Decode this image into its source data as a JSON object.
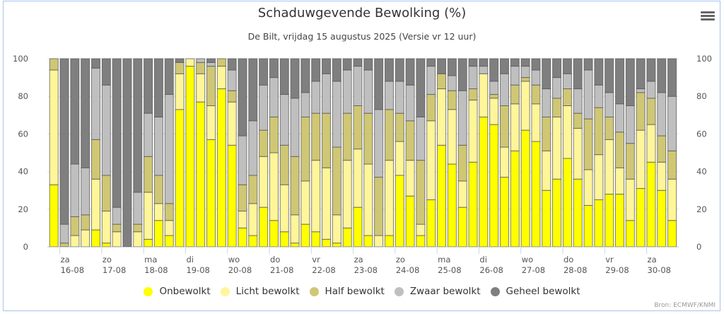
{
  "header": {
    "title": "Schaduwgevende Bewolking (%)",
    "subtitle": "De Bilt, vrijdag 15 augustus 2025 (Versie vr 12 uur)",
    "menu_icon": "hamburger-menu-icon"
  },
  "credits": "Bron: ECMWF/KNMI",
  "chart_data": {
    "type": "bar",
    "stacked": true,
    "title": "Schaduwgevende Bewolking (%)",
    "subtitle": "De Bilt, vrijdag 15 augustus 2025 (Versie vr 12 uur)",
    "xlabel": "",
    "ylabel": "",
    "ylim": [
      0,
      100
    ],
    "yticks": [
      0,
      20,
      40,
      60,
      80,
      100
    ],
    "y_axis_both_sides": true,
    "grid": true,
    "legend_position": "bottom",
    "interval": "6 uur",
    "day_ticks": [
      {
        "day": "za",
        "date": "16-08",
        "at_index": 1
      },
      {
        "day": "zo",
        "date": "17-08",
        "at_index": 5
      },
      {
        "day": "ma",
        "date": "18-08",
        "at_index": 9
      },
      {
        "day": "di",
        "date": "19-08",
        "at_index": 13
      },
      {
        "day": "wo",
        "date": "20-08",
        "at_index": 17
      },
      {
        "day": "do",
        "date": "21-08",
        "at_index": 21
      },
      {
        "day": "vr",
        "date": "22-08",
        "at_index": 25
      },
      {
        "day": "za",
        "date": "23-08",
        "at_index": 29
      },
      {
        "day": "zo",
        "date": "24-08",
        "at_index": 33
      },
      {
        "day": "ma",
        "date": "25-08",
        "at_index": 37
      },
      {
        "day": "di",
        "date": "26-08",
        "at_index": 41
      },
      {
        "day": "wo",
        "date": "27-08",
        "at_index": 45
      },
      {
        "day": "do",
        "date": "28-08",
        "at_index": 49
      },
      {
        "day": "vr",
        "date": "29-08",
        "at_index": 53
      },
      {
        "day": "za",
        "date": "30-08",
        "at_index": 57
      }
    ],
    "series": [
      {
        "name": "Onbewolkt",
        "color": "#ffff00",
        "values": [
          33,
          0,
          0,
          0,
          9,
          2,
          0,
          0,
          0,
          4,
          14,
          6,
          73,
          96,
          77,
          57,
          84,
          54,
          10,
          6,
          21,
          14,
          8,
          2,
          12,
          8,
          4,
          2,
          10,
          21,
          6,
          0,
          6,
          38,
          27,
          6,
          25,
          54,
          44,
          21,
          45,
          69,
          65,
          37,
          51,
          62,
          56,
          30,
          36,
          47,
          36,
          22,
          25,
          28,
          28,
          14,
          31,
          45,
          30,
          14
        ]
      },
      {
        "name": "Licht bewolkt",
        "color": "#fff599",
        "values": [
          61,
          0,
          6,
          9,
          27,
          17,
          8,
          0,
          8,
          25,
          9,
          8,
          19,
          4,
          15,
          18,
          12,
          23,
          9,
          17,
          27,
          36,
          25,
          15,
          23,
          38,
          38,
          15,
          36,
          31,
          38,
          6,
          40,
          18,
          19,
          6,
          42,
          30,
          29,
          14,
          33,
          23,
          14,
          16,
          25,
          26,
          20,
          21,
          33,
          28,
          27,
          19,
          24,
          29,
          14,
          22,
          31,
          20,
          15,
          22
        ]
      },
      {
        "name": "Half bewolkt",
        "color": "#cfc774",
        "values": [
          6,
          2,
          10,
          8,
          21,
          19,
          4,
          0,
          4,
          19,
          15,
          9,
          6,
          0,
          6,
          21,
          4,
          6,
          14,
          15,
          14,
          19,
          21,
          31,
          34,
          25,
          29,
          36,
          25,
          23,
          27,
          31,
          27,
          15,
          21,
          34,
          14,
          8,
          10,
          19,
          6,
          0,
          2,
          22,
          10,
          2,
          10,
          18,
          10,
          9,
          8,
          27,
          25,
          12,
          19,
          19,
          20,
          14,
          14,
          15
        ]
      },
      {
        "name": "Zwaar bewolkt",
        "color": "#bfbfbf",
        "values": [
          0,
          10,
          28,
          25,
          38,
          48,
          9,
          0,
          17,
          23,
          31,
          58,
          0,
          0,
          2,
          2,
          0,
          11,
          26,
          29,
          24,
          21,
          27,
          31,
          13,
          17,
          21,
          35,
          23,
          21,
          23,
          36,
          15,
          17,
          19,
          23,
          15,
          0,
          8,
          29,
          12,
          4,
          7,
          17,
          10,
          6,
          8,
          15,
          11,
          8,
          13,
          26,
          12,
          13,
          15,
          20,
          2,
          9,
          23,
          29
        ]
      },
      {
        "name": "Geheel bewolkt",
        "color": "#7f7f7f",
        "values": [
          0,
          88,
          56,
          58,
          5,
          14,
          79,
          100,
          71,
          29,
          31,
          19,
          2,
          0,
          0,
          2,
          0,
          6,
          41,
          33,
          14,
          10,
          19,
          21,
          18,
          12,
          8,
          12,
          6,
          4,
          6,
          27,
          12,
          12,
          14,
          31,
          4,
          8,
          9,
          17,
          4,
          4,
          12,
          8,
          4,
          4,
          6,
          16,
          10,
          8,
          16,
          6,
          14,
          18,
          24,
          25,
          16,
          12,
          18,
          20
        ]
      }
    ]
  }
}
